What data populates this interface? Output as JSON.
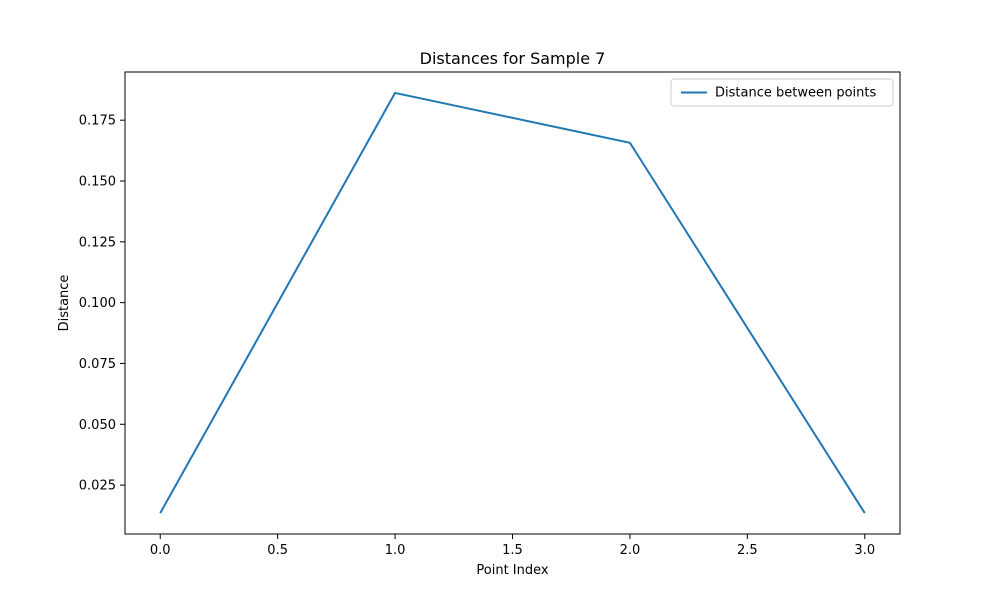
{
  "chart_data": {
    "type": "line",
    "title": "Distances for Sample 7",
    "xlabel": "Point Index",
    "ylabel": "Distance",
    "x": [
      0,
      1,
      2,
      3
    ],
    "series": [
      {
        "name": "Distance between points",
        "values": [
          0.0135,
          0.1862,
          0.1657,
          0.0135
        ],
        "color": "#1f77b4"
      }
    ],
    "xlim": [
      -0.15,
      3.15
    ],
    "ylim": [
      0.0049,
      0.1948
    ],
    "xticks": [
      "0.0",
      "0.5",
      "1.0",
      "1.5",
      "2.0",
      "2.5",
      "3.0"
    ],
    "yticks": [
      "0.025",
      "0.050",
      "0.075",
      "0.100",
      "0.125",
      "0.150",
      "0.175"
    ],
    "grid": false,
    "legend_position": "top-right"
  }
}
